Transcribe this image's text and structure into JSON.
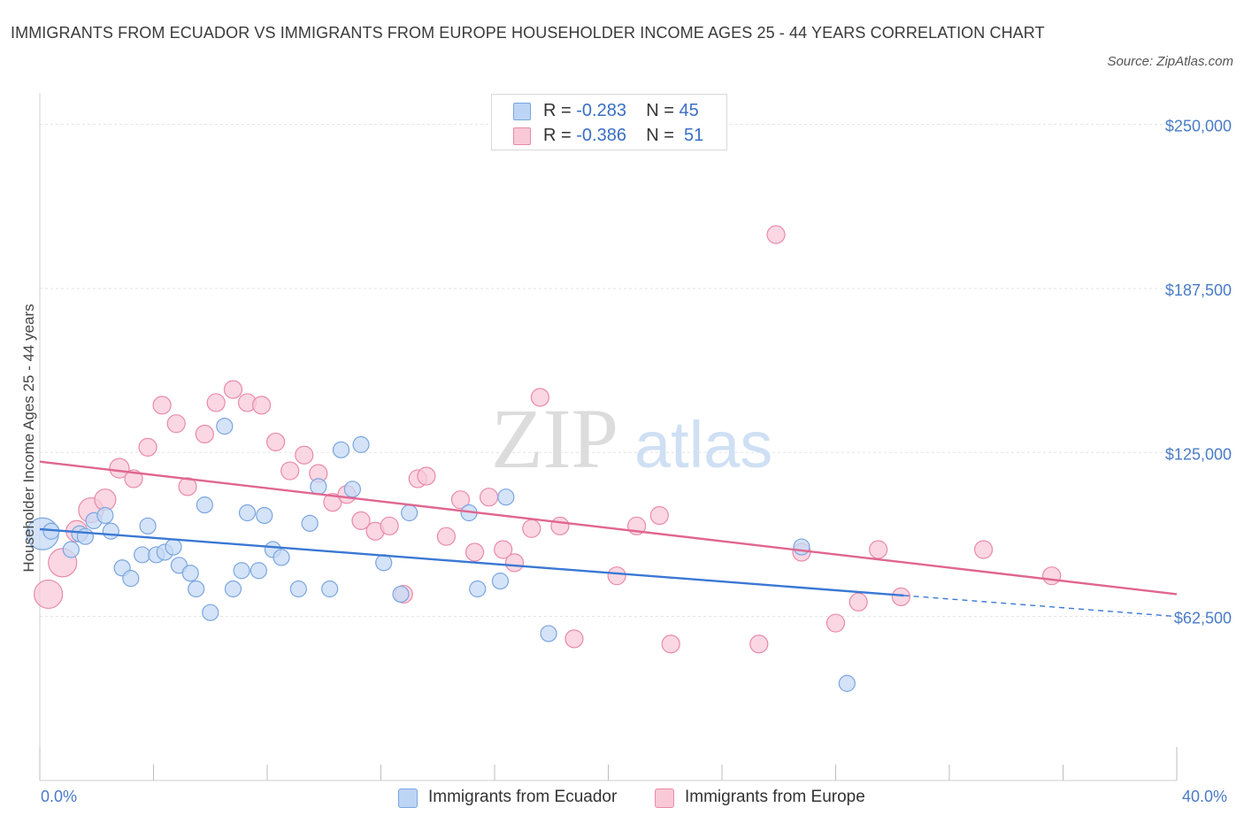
{
  "title": "IMMIGRANTS FROM ECUADOR VS IMMIGRANTS FROM EUROPE HOUSEHOLDER INCOME AGES 25 - 44 YEARS CORRELATION CHART",
  "source": "Source: ZipAtlas.com",
  "watermark": {
    "zip": "ZIP",
    "atlas": "atlas"
  },
  "legend_top": [
    {
      "r_label": "R =",
      "r_value": "-0.283",
      "n_label": "N =",
      "n_value": "45",
      "fill": "#bdd5f5",
      "stroke": "#7aa6e0"
    },
    {
      "r_label": "R =",
      "r_value": "-0.386",
      "n_label": "N =",
      "n_value": "51",
      "fill": "#f9c9d8",
      "stroke": "#e98aa8"
    }
  ],
  "legend_bottom": [
    {
      "label": "Immigrants from Ecuador",
      "fill": "#bdd5f5",
      "stroke": "#7aa6e0"
    },
    {
      "label": "Immigrants from Europe",
      "fill": "#f9c9d8",
      "stroke": "#e98aa8"
    }
  ],
  "chart_data": {
    "type": "scatter",
    "ylabel": "Householder Income Ages 25 - 44 years",
    "xlim": [
      0,
      40
    ],
    "ylim": [
      0,
      262000
    ],
    "x_tick_labels": [
      "0.0%",
      "40.0%"
    ],
    "y_ticks": [
      62500,
      125000,
      187500,
      250000
    ],
    "y_tick_labels": [
      "$62,500",
      "$125,000",
      "$187,500",
      "$250,000"
    ],
    "colors": {
      "ecuador": "#3a78d4",
      "europe": "#e0668f",
      "ecuador_fill": "#c5daf5",
      "europe_fill": "#f8cad9"
    },
    "series": [
      {
        "name": "Immigrants from Ecuador",
        "trend": {
          "x0": 0,
          "y0": 95800,
          "x1": 30.4,
          "y1": 70500,
          "dash_to_x": 40,
          "dash_to_y": 62500
        },
        "points": [
          [
            0.1,
            94000,
            18
          ],
          [
            0.4,
            95000,
            9
          ],
          [
            1.1,
            88000,
            9
          ],
          [
            1.4,
            94000,
            9
          ],
          [
            1.6,
            93000,
            9
          ],
          [
            1.9,
            99000,
            9
          ],
          [
            2.3,
            101000,
            9
          ],
          [
            2.5,
            95000,
            9
          ],
          [
            2.9,
            81000,
            9
          ],
          [
            3.2,
            77000,
            9
          ],
          [
            3.6,
            86000,
            9
          ],
          [
            3.8,
            97000,
            9
          ],
          [
            4.1,
            86000,
            9
          ],
          [
            4.4,
            87000,
            9
          ],
          [
            4.7,
            89000,
            9
          ],
          [
            4.9,
            82000,
            9
          ],
          [
            5.3,
            79000,
            9
          ],
          [
            5.5,
            73000,
            9
          ],
          [
            5.8,
            105000,
            9
          ],
          [
            6.0,
            64000,
            9
          ],
          [
            6.5,
            135000,
            9
          ],
          [
            6.8,
            73000,
            9
          ],
          [
            7.1,
            80000,
            9
          ],
          [
            7.3,
            102000,
            9
          ],
          [
            7.7,
            80000,
            9
          ],
          [
            7.9,
            101000,
            9
          ],
          [
            8.2,
            88000,
            9
          ],
          [
            8.5,
            85000,
            9
          ],
          [
            9.1,
            73000,
            9
          ],
          [
            9.5,
            98000,
            9
          ],
          [
            9.8,
            112000,
            9
          ],
          [
            10.2,
            73000,
            9
          ],
          [
            10.6,
            126000,
            9
          ],
          [
            11.0,
            111000,
            9
          ],
          [
            11.3,
            128000,
            9
          ],
          [
            12.1,
            83000,
            9
          ],
          [
            12.7,
            71000,
            9
          ],
          [
            13.0,
            102000,
            9
          ],
          [
            15.1,
            102000,
            9
          ],
          [
            15.4,
            73000,
            9
          ],
          [
            16.2,
            76000,
            9
          ],
          [
            16.4,
            108000,
            9
          ],
          [
            17.9,
            56000,
            9
          ],
          [
            26.8,
            89000,
            9
          ],
          [
            28.4,
            37000,
            9
          ]
        ]
      },
      {
        "name": "Immigrants from Europe",
        "trend": {
          "x0": 0,
          "y0": 121500,
          "x1": 40,
          "y1": 71000
        },
        "points": [
          [
            0.3,
            71000,
            16
          ],
          [
            0.8,
            83000,
            16
          ],
          [
            1.3,
            95000,
            12
          ],
          [
            1.8,
            103000,
            14
          ],
          [
            2.3,
            107000,
            12
          ],
          [
            2.8,
            119000,
            11
          ],
          [
            3.3,
            115000,
            10
          ],
          [
            3.8,
            127000,
            10
          ],
          [
            4.3,
            143000,
            10
          ],
          [
            4.8,
            136000,
            10
          ],
          [
            5.2,
            112000,
            10
          ],
          [
            5.8,
            132000,
            10
          ],
          [
            6.2,
            144000,
            10
          ],
          [
            6.8,
            149000,
            10
          ],
          [
            7.3,
            144000,
            10
          ],
          [
            7.8,
            143000,
            10
          ],
          [
            8.3,
            129000,
            10
          ],
          [
            8.8,
            118000,
            10
          ],
          [
            9.3,
            124000,
            10
          ],
          [
            9.8,
            117000,
            10
          ],
          [
            10.3,
            106000,
            10
          ],
          [
            10.8,
            109000,
            10
          ],
          [
            11.3,
            99000,
            10
          ],
          [
            11.8,
            95000,
            10
          ],
          [
            12.3,
            97000,
            10
          ],
          [
            12.8,
            71000,
            10
          ],
          [
            13.3,
            115000,
            10
          ],
          [
            13.6,
            116000,
            10
          ],
          [
            14.3,
            93000,
            10
          ],
          [
            14.8,
            107000,
            10
          ],
          [
            15.3,
            87000,
            10
          ],
          [
            15.8,
            108000,
            10
          ],
          [
            16.3,
            88000,
            10
          ],
          [
            16.7,
            83000,
            10
          ],
          [
            17.3,
            96000,
            10
          ],
          [
            17.6,
            146000,
            10
          ],
          [
            18.8,
            54000,
            10
          ],
          [
            18.3,
            97000,
            10
          ],
          [
            20.3,
            78000,
            10
          ],
          [
            21.0,
            97000,
            10
          ],
          [
            22.2,
            52000,
            10
          ],
          [
            21.8,
            101000,
            10
          ],
          [
            25.3,
            52000,
            10
          ],
          [
            25.9,
            208000,
            10
          ],
          [
            26.8,
            87000,
            10
          ],
          [
            28.0,
            60000,
            10
          ],
          [
            28.8,
            68000,
            10
          ],
          [
            29.5,
            88000,
            10
          ],
          [
            30.3,
            70000,
            10
          ],
          [
            33.2,
            88000,
            10
          ],
          [
            35.6,
            78000,
            10
          ]
        ]
      }
    ]
  }
}
